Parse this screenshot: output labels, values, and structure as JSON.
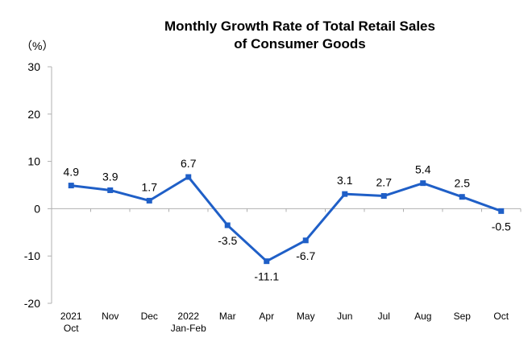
{
  "chart_data": {
    "type": "line",
    "title": [
      "Monthly Growth Rate of Total Retail Sales",
      "of Consumer Goods"
    ],
    "unit": "（%）",
    "categories": [
      [
        "2021",
        "Oct"
      ],
      [
        "Nov"
      ],
      [
        "Dec"
      ],
      [
        "2022",
        "Jan-Feb"
      ],
      [
        "Mar"
      ],
      [
        "Apr"
      ],
      [
        "May"
      ],
      [
        "Jun"
      ],
      [
        "Jul"
      ],
      [
        "Aug"
      ],
      [
        "Sep"
      ],
      [
        "Oct"
      ]
    ],
    "values": [
      4.9,
      3.9,
      1.7,
      6.7,
      -3.5,
      -11.1,
      -6.7,
      3.1,
      2.7,
      5.4,
      2.5,
      -0.5
    ],
    "labels": [
      "4.9",
      "3.9",
      "1.7",
      "6.7",
      "-3.5",
      "-11.1",
      "-6.7",
      "3.1",
      "2.7",
      "5.4",
      "2.5",
      "-0.5"
    ],
    "label_position": [
      "above",
      "above",
      "above",
      "above",
      "below",
      "below",
      "below",
      "above",
      "above",
      "above",
      "above",
      "below"
    ],
    "yticks": [
      "30",
      "20",
      "10",
      "0",
      "-10",
      "-20"
    ],
    "ylim": [
      -20,
      30
    ],
    "color": "#1f5fc7",
    "grid": false
  }
}
